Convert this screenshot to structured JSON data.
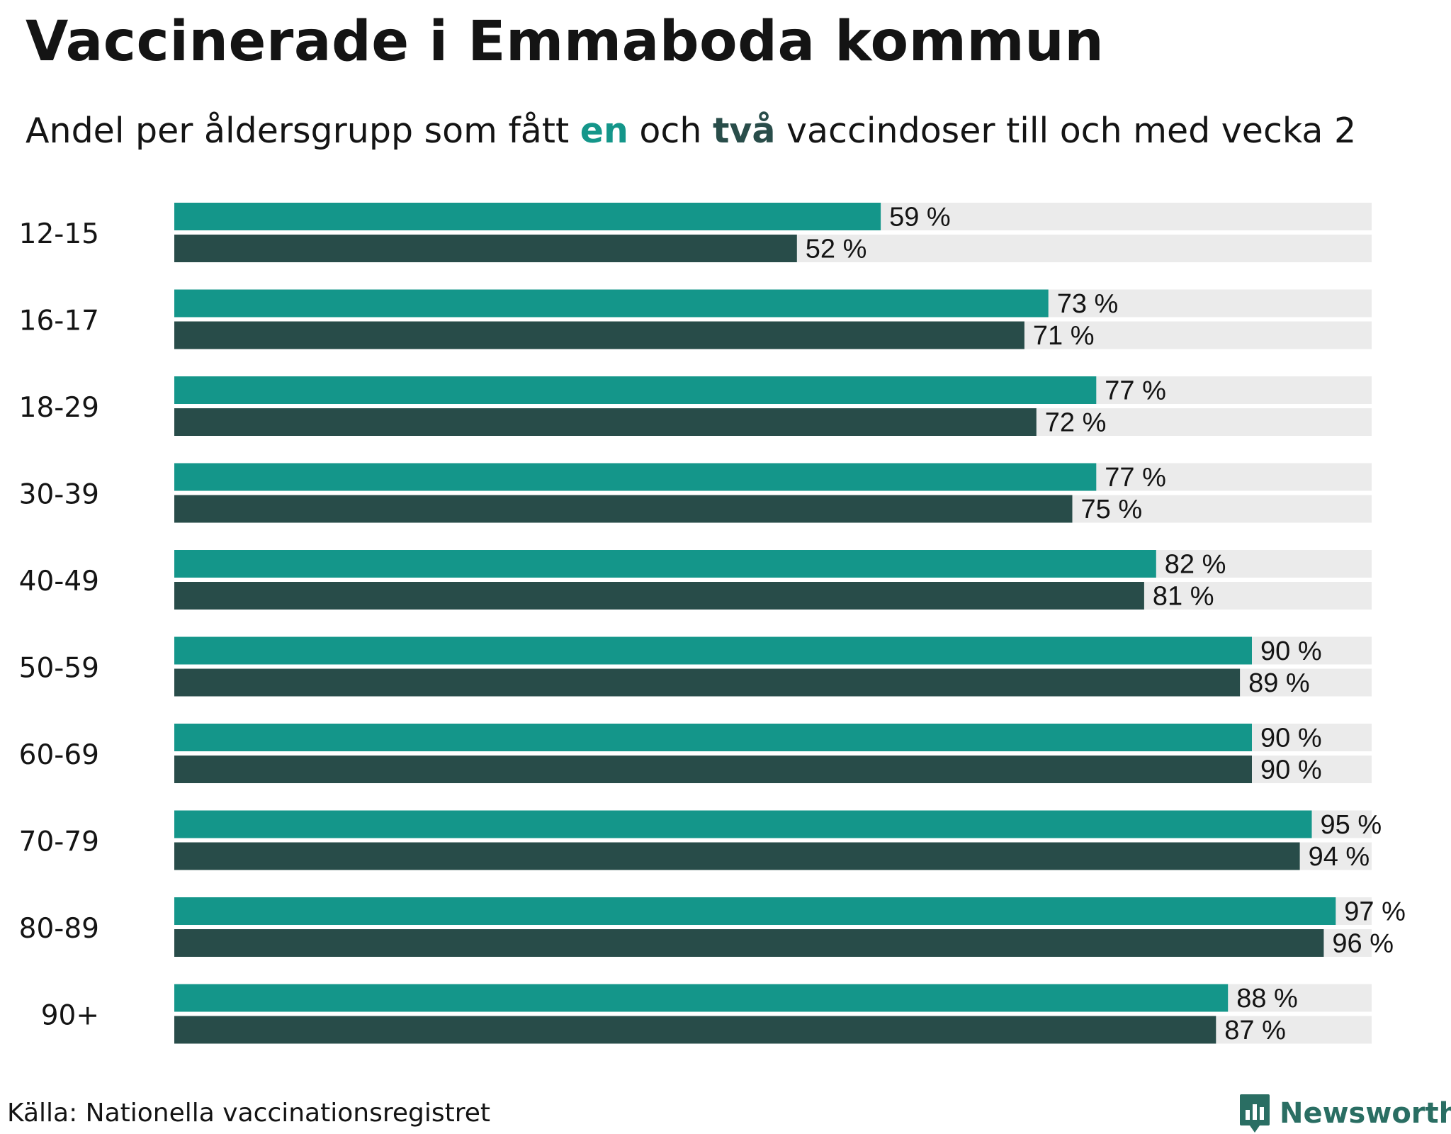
{
  "header": {
    "title": "Vaccinerade i Emmaboda kommun",
    "subtitle_parts": {
      "before": "Andel per åldersgrupp som fått ",
      "one": "en",
      "middle": " och ",
      "two": "två",
      "after": " vaccindoser till och med vecka 2"
    }
  },
  "colors": {
    "dose_one": "#14968a",
    "dose_two": "#284c49",
    "track": "#ebebeb",
    "text": "#141414"
  },
  "chart_data": {
    "type": "bar",
    "orientation": "horizontal",
    "categories": [
      "12-15",
      "16-17",
      "18-29",
      "30-39",
      "40-49",
      "50-59",
      "60-69",
      "70-79",
      "80-89",
      "90+"
    ],
    "series": [
      {
        "name": "en",
        "values": [
          59,
          73,
          77,
          77,
          82,
          90,
          90,
          95,
          97,
          88
        ],
        "labels": [
          "59 %",
          "73 %",
          "77 %",
          "77 %",
          "82 %",
          "90 %",
          "90 %",
          "95 %",
          "97 %",
          "88 %"
        ]
      },
      {
        "name": "två",
        "values": [
          52,
          71,
          72,
          75,
          81,
          89,
          90,
          94,
          96,
          87
        ],
        "labels": [
          "52 %",
          "71 %",
          "72 %",
          "75 %",
          "81 %",
          "89 %",
          "90 %",
          "94 %",
          "96 %",
          "87 %"
        ]
      }
    ],
    "xlim": [
      0,
      100
    ],
    "unit": "%",
    "title": "Vaccinerade i Emmaboda kommun",
    "xlabel": "",
    "ylabel": "",
    "grid": false
  },
  "footer": {
    "source": "Källa: Nationella vaccinationsregistret",
    "brand": "Newsworthy",
    "brand_icon": "newsworthy-logo-icon"
  }
}
